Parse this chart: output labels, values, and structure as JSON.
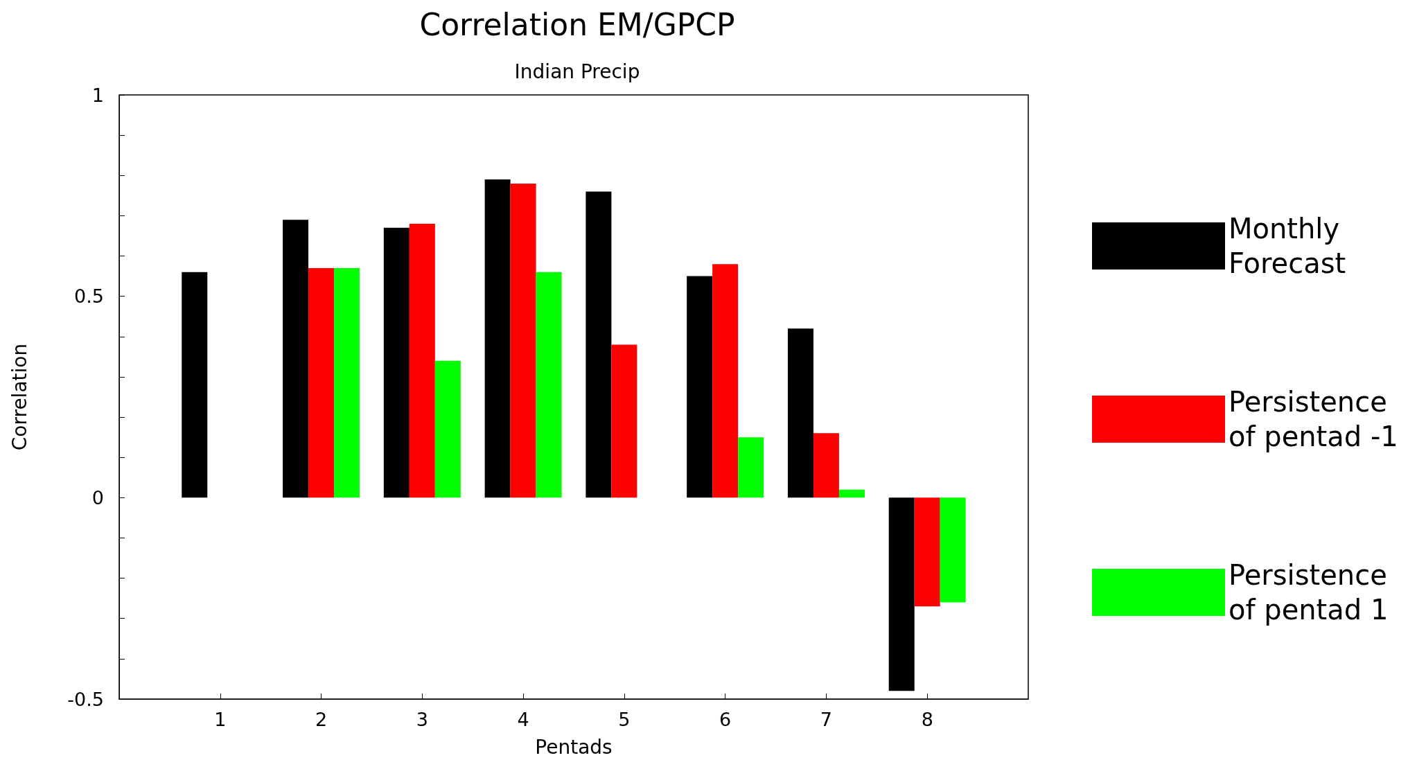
{
  "chart_data": {
    "type": "bar",
    "title": "Correlation EM/GPCP",
    "subtitle": "Indian Precip",
    "xlabel": "Pentads",
    "ylabel": "Correlation",
    "x": [
      1,
      2,
      3,
      4,
      5,
      6,
      7,
      8
    ],
    "xlim": [
      0,
      9
    ],
    "xticks": [
      1,
      2,
      3,
      4,
      5,
      6,
      7,
      8
    ],
    "ylim": [
      -0.5,
      1
    ],
    "yticks": [
      -0.5,
      {
        "value": -0.4,
        "label": null
      },
      {
        "value": -0.3,
        "label": null
      },
      {
        "value": -0.2,
        "label": null
      },
      {
        "value": -0.1,
        "label": null
      },
      0,
      {
        "value": 0.1,
        "label": null
      },
      {
        "value": 0.2,
        "label": null
      },
      {
        "value": 0.3,
        "label": null
      },
      {
        "value": 0.4,
        "label": null
      },
      0.5,
      {
        "value": 0.6,
        "label": null
      },
      {
        "value": 0.7,
        "label": null
      },
      {
        "value": 0.8,
        "label": null
      },
      {
        "value": 0.9,
        "label": null
      },
      1
    ],
    "series": [
      {
        "name": "Monthly Forecast",
        "color": "#000000",
        "values": [
          0.56,
          0.69,
          0.67,
          0.79,
          0.76,
          0.55,
          0.42,
          -0.48
        ]
      },
      {
        "name": "Persistence of pentad -1",
        "color": "#ff0000",
        "values": [
          0,
          0.57,
          0.68,
          0.78,
          0.38,
          0.58,
          0.16,
          -0.27
        ]
      },
      {
        "name": "Persistence of pentad 1",
        "color": "#00ff00",
        "values": [
          0,
          0.57,
          0.34,
          0.56,
          0,
          0.15,
          0.02,
          -0.26
        ]
      }
    ],
    "grid": false,
    "legend": "right"
  }
}
